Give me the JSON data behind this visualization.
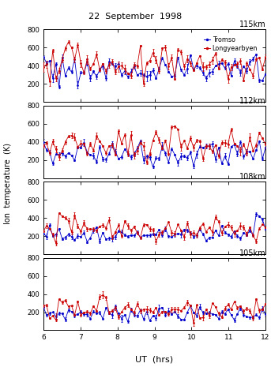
{
  "title": "22  September  1998",
  "xlabel": "UT  (hrs)",
  "ylabel": "Ion  temperature  (K)",
  "legend_labels": [
    "Tromso",
    "Longyearbyen"
  ],
  "altitudes": [
    "115km",
    "112km",
    "108km",
    "105km"
  ],
  "ylim": [
    0,
    800
  ],
  "yticks": [
    0,
    200,
    400,
    600,
    800
  ],
  "xlim": [
    6,
    12
  ],
  "xticks": [
    6,
    7,
    8,
    9,
    10,
    11,
    12
  ],
  "n_points": 72,
  "blue_color": "#0000cc",
  "red_color": "#cc0000"
}
